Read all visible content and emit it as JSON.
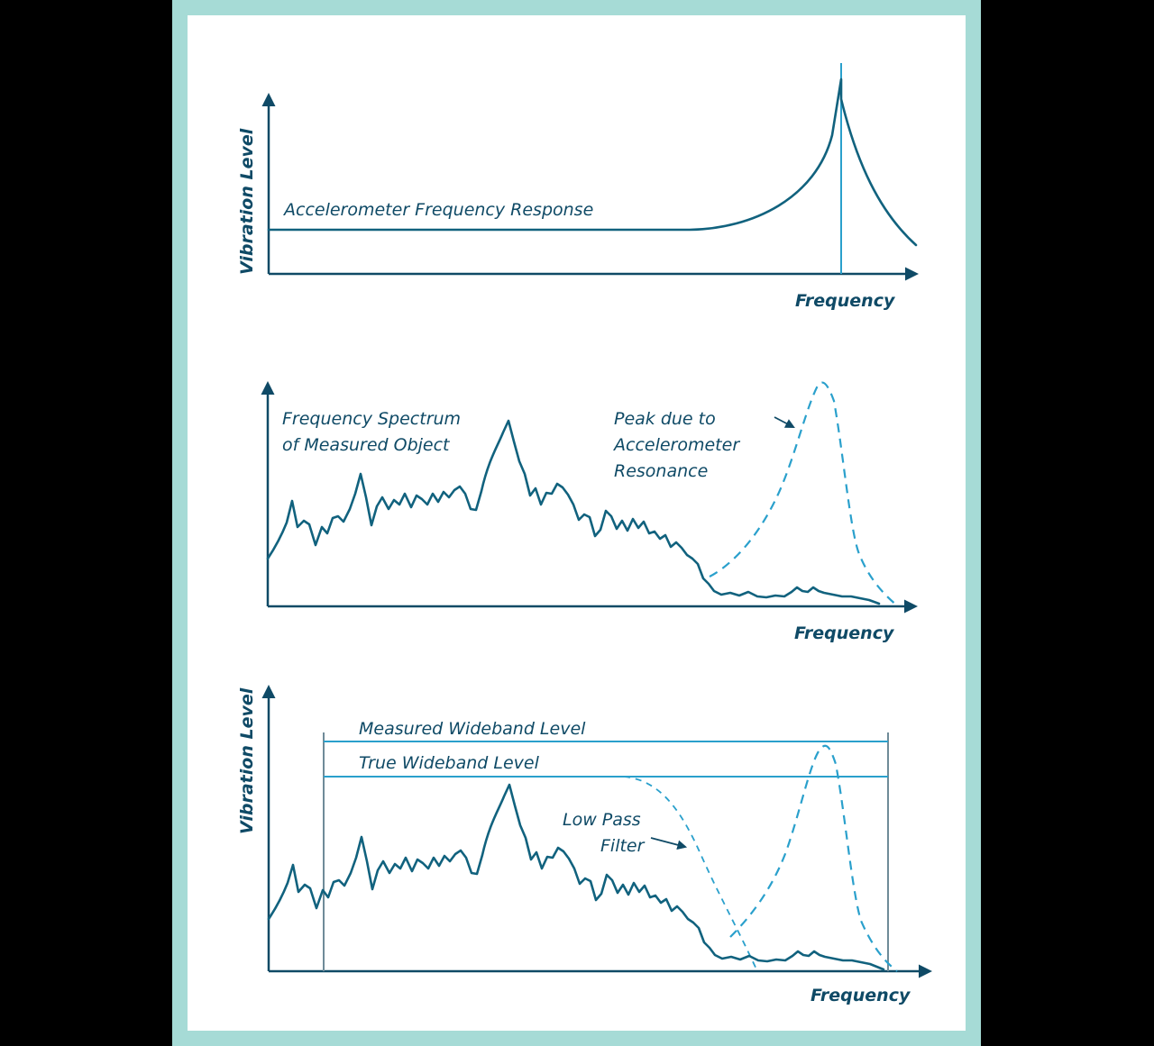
{
  "colors": {
    "background": "#000000",
    "frame": "#a6dbd6",
    "panel": "#ffffff",
    "axis": "#0f4a66",
    "curve": "#11627e",
    "accent": "#2aa0cc"
  },
  "panel1": {
    "ylabel": "Vibration Level",
    "xlabel": "Frequency",
    "curve_label": "Accelerometer Frequency Response"
  },
  "panel2": {
    "ylabel": "",
    "xlabel": "Frequency",
    "spectrum_label": [
      "Frequency Spectrum",
      "of Measured Object"
    ],
    "peak_label": [
      "Peak due to",
      "Accelerometer",
      "Resonance"
    ]
  },
  "panel3": {
    "ylabel": "Vibration Level",
    "xlabel": "Frequency",
    "measured_label": "Measured Wideband Level",
    "true_label": "True Wideband Level",
    "filter_label": [
      "Low Pass",
      "Filter"
    ]
  }
}
